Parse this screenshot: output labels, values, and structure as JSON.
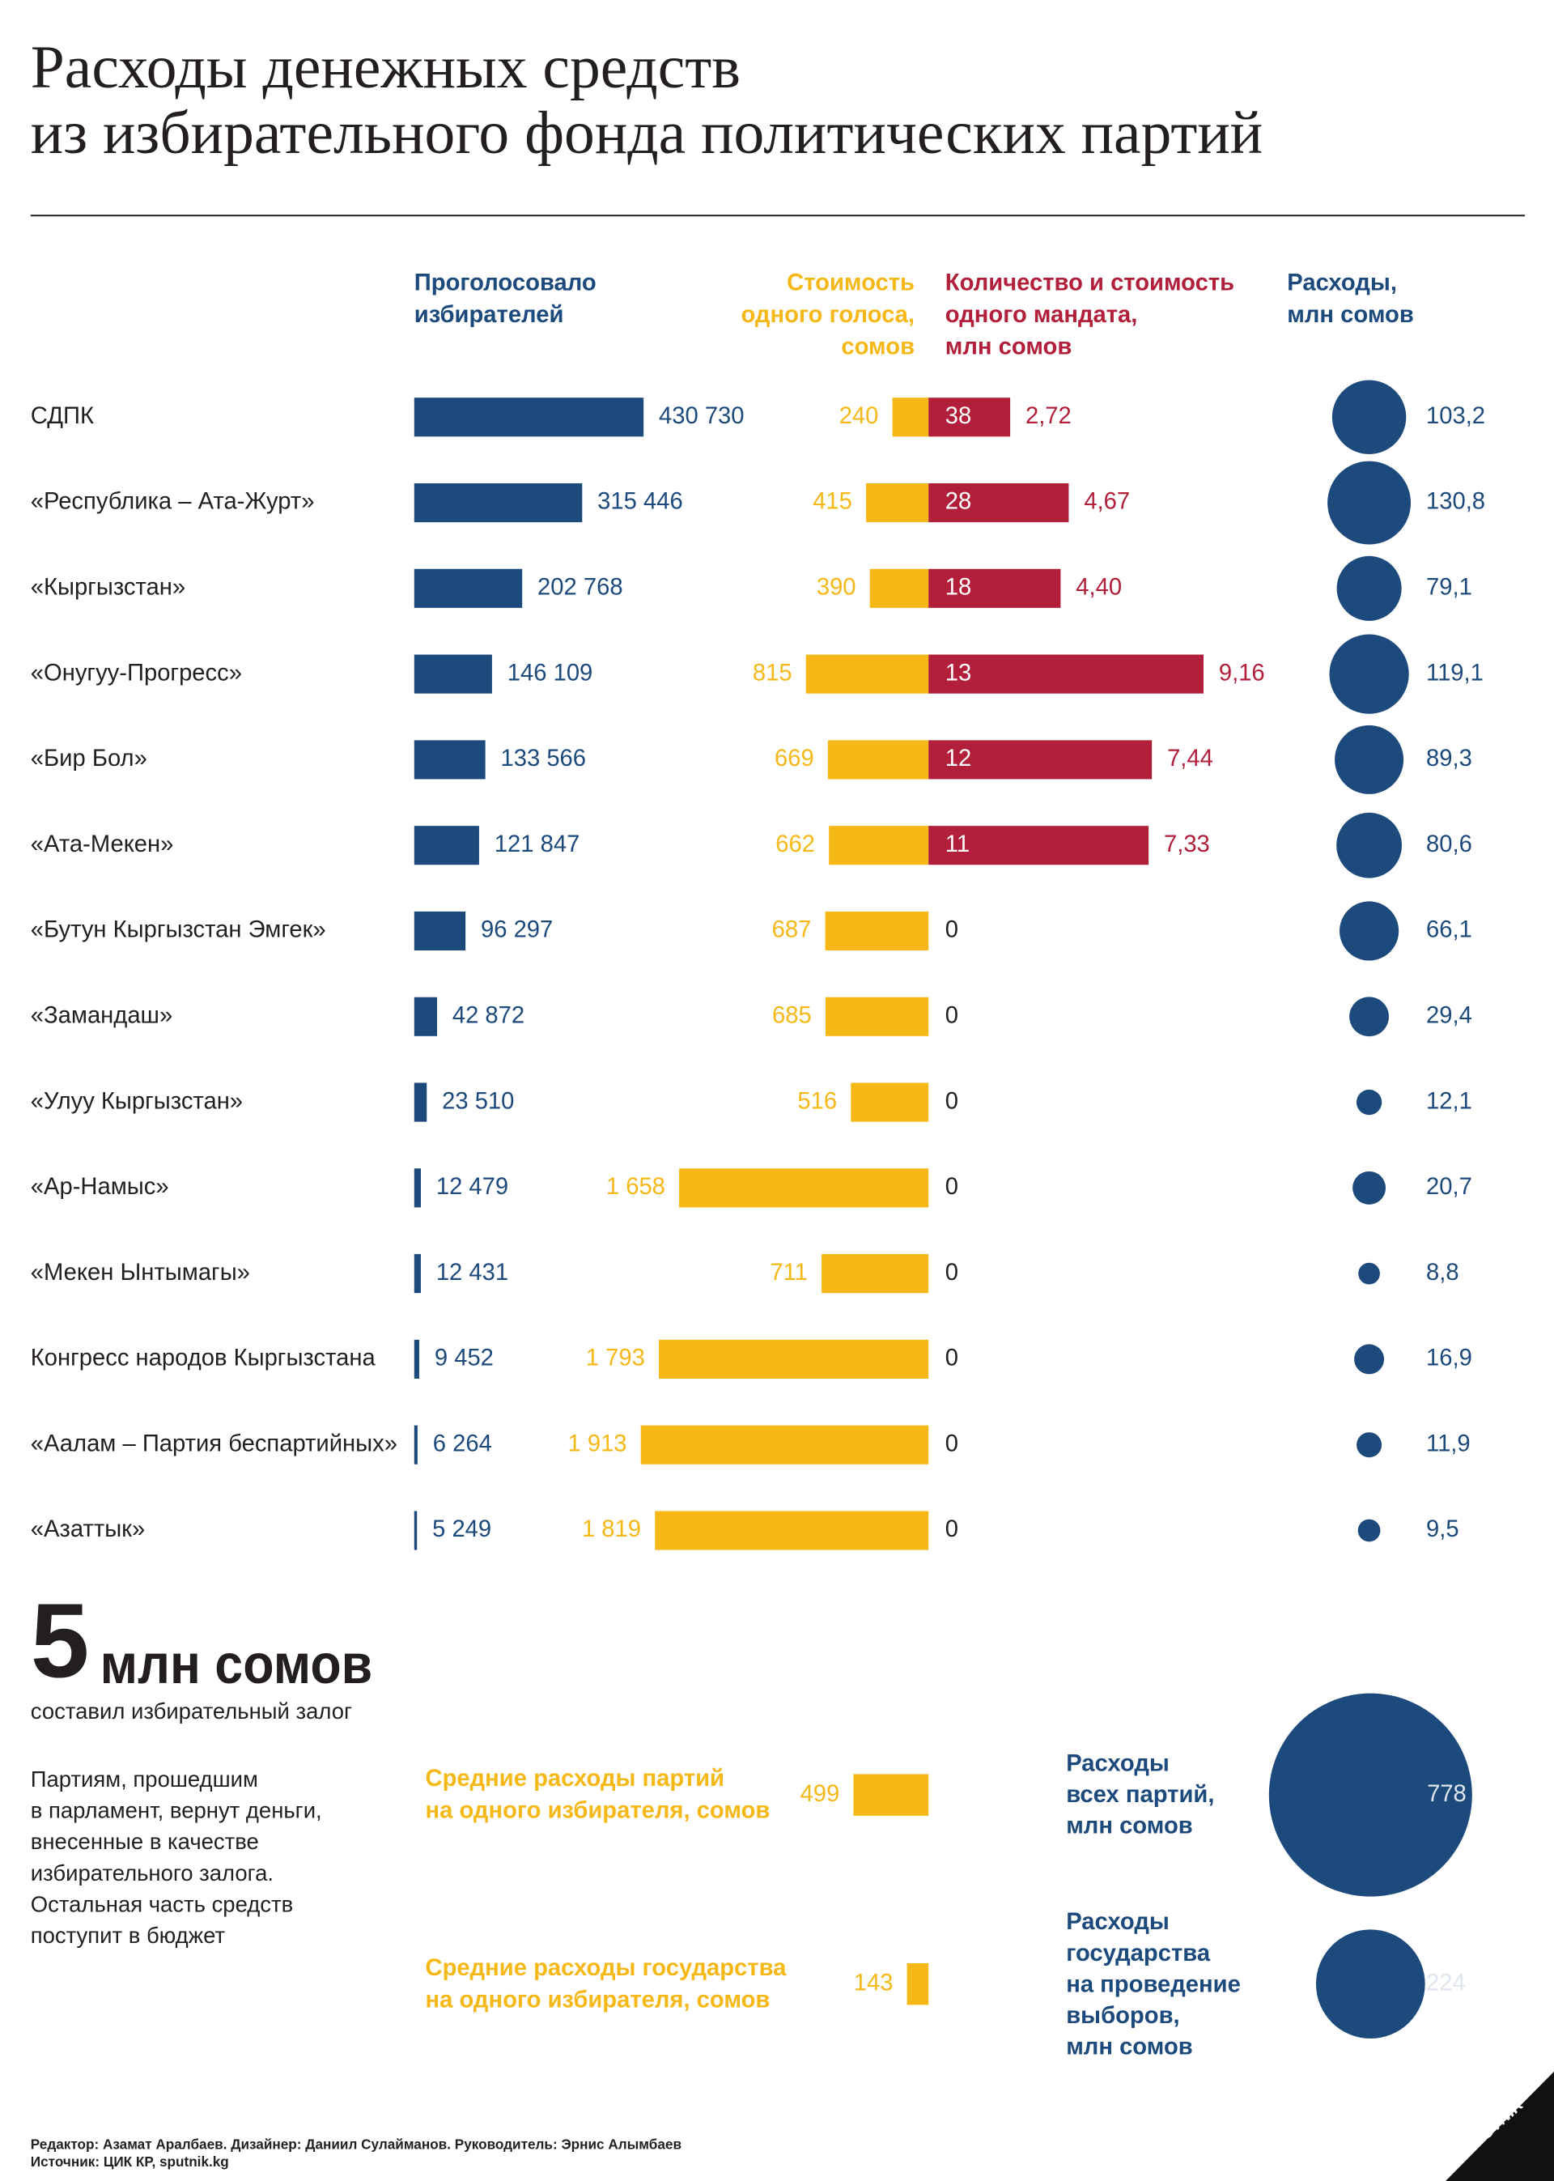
{
  "title": "Расходы денежных средств\nиз избирательного фонда политических партий",
  "chart_data": {
    "type": "table-bars",
    "categories": [
      "СДПК",
      "«Республика – Ата-Журт»",
      "«Кыргызстан»",
      "«Онугуу-Прогресс»",
      "«Бир Бол»",
      "«Ата-Мекен»",
      "«Бутун Кыргызстан Эмгек»",
      "«Замандаш»",
      "«Улуу Кыргызстан»",
      "«Ар-Намыс»",
      "«Мекен Ынтымагы»",
      "Конгресс народов Кыргызстана",
      "«Аалам – Партия беспартийных»",
      "«Азаттык»"
    ],
    "series": [
      {
        "name": "Проголосовало\nизбирателей",
        "type": "bar",
        "color": "#1d4a7c",
        "values": [
          430730,
          315446,
          202768,
          146109,
          133566,
          121847,
          96297,
          42872,
          23510,
          12479,
          12431,
          9452,
          6264,
          5249
        ],
        "value_labels": [
          "430 730",
          "315 446",
          "202 768",
          "146 109",
          "133 566",
          "121 847",
          "96 297",
          "42 872",
          "23 510",
          "12 479",
          "12 431",
          "9 452",
          "6 264",
          "5 249"
        ]
      },
      {
        "name": "Стоимость\nодного голоса,\nсомов",
        "type": "bar-left",
        "color": "#f6b817",
        "values": [
          240,
          415,
          390,
          815,
          669,
          662,
          687,
          685,
          516,
          1658,
          711,
          1793,
          1913,
          1819
        ],
        "value_labels": [
          "240",
          "415",
          "390",
          "815",
          "669",
          "662",
          "687",
          "685",
          "516",
          "1 658",
          "711",
          "1 793",
          "1 913",
          "1 819"
        ]
      },
      {
        "name": "Количество и стоимость\nодного мандата,\nмлн сомов",
        "type": "bar-count",
        "color": "#b11f3a",
        "counts": [
          38,
          28,
          18,
          13,
          12,
          11,
          0,
          0,
          0,
          0,
          0,
          0,
          0,
          0
        ],
        "values": [
          2.72,
          4.67,
          4.4,
          9.16,
          7.44,
          7.33,
          null,
          null,
          null,
          null,
          null,
          null,
          null,
          null
        ],
        "value_labels": [
          "2,72",
          "4,67",
          "4,40",
          "9,16",
          "7,44",
          "7,33",
          null,
          null,
          null,
          null,
          null,
          null,
          null,
          null
        ]
      },
      {
        "name": "Расходы,\nмлн сомов",
        "type": "bubble",
        "color": "#1d4a7c",
        "values": [
          103.2,
          130.8,
          79.1,
          119.1,
          89.3,
          80.6,
          66.1,
          29.4,
          12.1,
          20.7,
          8.8,
          16.9,
          11.9,
          9.5
        ],
        "value_labels": [
          "103,2",
          "130,8",
          "79,1",
          "119,1",
          "89,3",
          "80,6",
          "66,1",
          "29,4",
          "12,1",
          "20,7",
          "8,8",
          "16,9",
          "11,9",
          "9,5"
        ]
      }
    ]
  },
  "deposit": {
    "amount": 5,
    "unit": "млн сомов",
    "caption": "составил избирательный залог"
  },
  "note": "Партиям, прошедшим\nв парламент, вернут деньги,\nвнесенные в качестве\nизбирательного залога.\nОстальная часть средств\nпоступит в бюджет",
  "averages": {
    "color": "#f6b817",
    "items": [
      {
        "label": "Средние расходы партий\nна одного избирателя, сомов",
        "value": 499
      },
      {
        "label": "Средние расходы государства\nна одного избирателя, сомов",
        "value": 143
      }
    ]
  },
  "totals": {
    "color": "#1d4a7c",
    "items": [
      {
        "label": "Расходы\nвсех партий,\nмлн сомов",
        "value": 778
      },
      {
        "label": "Расходы\nгосударства\nна проведение\nвыборов,\nмлн сомов",
        "value": 224
      }
    ]
  },
  "footer": [
    "Редактор: Азамат Аралбаев. Дизайнер: Даниил Сулайманов. Руководитель: Эрнис Алымбаев",
    "Источник: ЦИК КР, sputnik.kg"
  ],
  "logo": "SPUTNIK"
}
